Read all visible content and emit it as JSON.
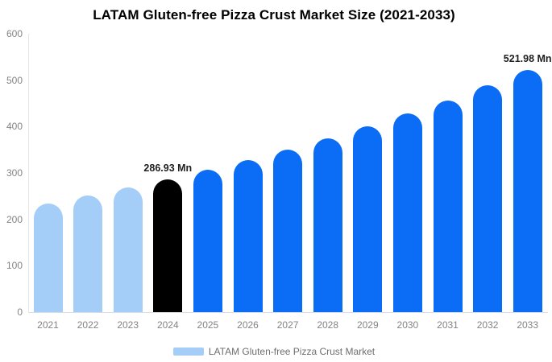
{
  "title": "LATAM Gluten-free Pizza Crust Market Size (2021-2033)",
  "chart_data": {
    "type": "bar",
    "title": "LATAM Gluten-free Pizza Crust Market Size (2021-2033)",
    "categories": [
      "2021",
      "2022",
      "2023",
      "2024",
      "2025",
      "2026",
      "2027",
      "2028",
      "2029",
      "2030",
      "2031",
      "2032",
      "2033"
    ],
    "values": [
      235.04,
      251.2,
      268.47,
      286.93,
      306.66,
      327.74,
      350.27,
      374.35,
      400.08,
      427.59,
      456.99,
      488.4,
      521.98
    ],
    "unit": "Mn",
    "xlabel": "",
    "ylabel": "",
    "ylim": [
      0,
      600
    ],
    "yticks": [
      "0",
      "100",
      "200",
      "300",
      "400",
      "500",
      "600"
    ],
    "grid": false,
    "annotations": [
      {
        "index": 3,
        "text": "286.93 Mn"
      },
      {
        "index": 12,
        "text": "521.98 Mn"
      }
    ],
    "bar_colors": [
      "#a4cdf8",
      "#a4cdf8",
      "#a4cdf8",
      "#000000",
      "#0b6cf5",
      "#0b6cf5",
      "#0b6cf5",
      "#0b6cf5",
      "#0b6cf5",
      "#0b6cf5",
      "#0b6cf5",
      "#0b6cf5",
      "#0b6cf5"
    ],
    "legend": {
      "label": "LATAM Gluten-free Pizza Crust Market",
      "swatch_color": "#a4cdf8",
      "position": "bottom"
    }
  },
  "colors": {
    "background": "#ffffff",
    "title_text": "#000000",
    "axis_line": "#dde2e7",
    "axis_text": "#838383",
    "annotation_text": "#202020",
    "legend_text": "#6e6e6e",
    "light_blue": "#a4cdf8",
    "vivid_blue": "#0b6cf5",
    "highlight_black": "#000000"
  }
}
